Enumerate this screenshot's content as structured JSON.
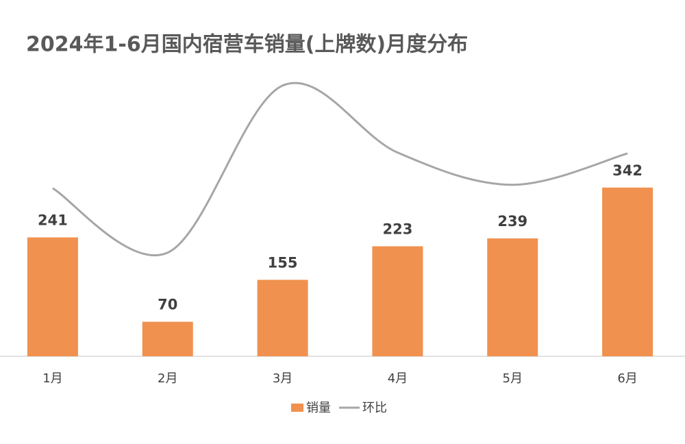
{
  "chart_data": {
    "type": "bar-line",
    "title": "2024年1-6月国内宿营车销量(上牌数)月度分布",
    "categories": [
      "1月",
      "2月",
      "3月",
      "4月",
      "5月",
      "6月"
    ],
    "series": [
      {
        "name": "销量",
        "type": "bar",
        "color": "#f0914f",
        "values": [
          241,
          70,
          155,
          223,
          239,
          342
        ]
      },
      {
        "name": "环比",
        "type": "line",
        "axis": "y2",
        "color": "#a6a6a6",
        "values": [
          3,
          -71,
          121,
          44,
          7,
          43
        ]
      }
    ],
    "ylim": [
      0,
      600
    ],
    "y2lim": [
      -190,
      150
    ],
    "legend": "bottom"
  }
}
